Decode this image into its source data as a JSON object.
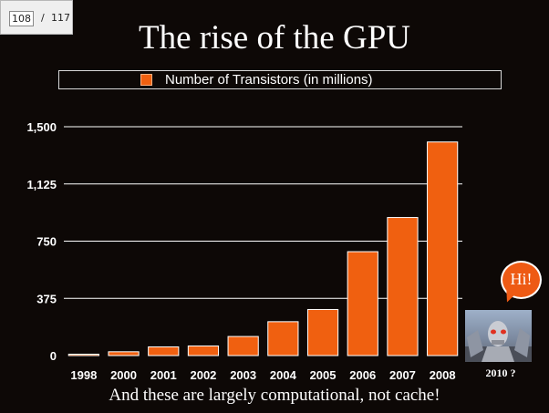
{
  "viewer": {
    "current_page": "108",
    "separator": "/",
    "total_pages": "117"
  },
  "slide": {
    "title": "The rise of the GPU",
    "caption": "And these are largely computational, not cache!",
    "speech_bubble": "Hi!",
    "robot_label": "2010 ?"
  },
  "colors": {
    "background": "#0d0806",
    "bar": "#f06010",
    "bar_border": "#ffffff",
    "text": "#ffffff"
  },
  "chart_data": {
    "type": "bar",
    "categories": [
      "1998",
      "2000",
      "2001",
      "2002",
      "2003",
      "2004",
      "2005",
      "2006",
      "2007",
      "2008"
    ],
    "series": [
      {
        "name": "Number of Transistors (in millions)",
        "values": [
          9,
          25,
          57,
          63,
          125,
          222,
          302,
          681,
          905,
          1400
        ]
      }
    ],
    "y_ticks": [
      "0",
      "375",
      "750",
      "1,125",
      "1,500"
    ],
    "ylim": [
      0,
      1500
    ],
    "title": "",
    "xlabel": "",
    "ylabel": "",
    "grid": "horizontal",
    "legend": "top"
  }
}
